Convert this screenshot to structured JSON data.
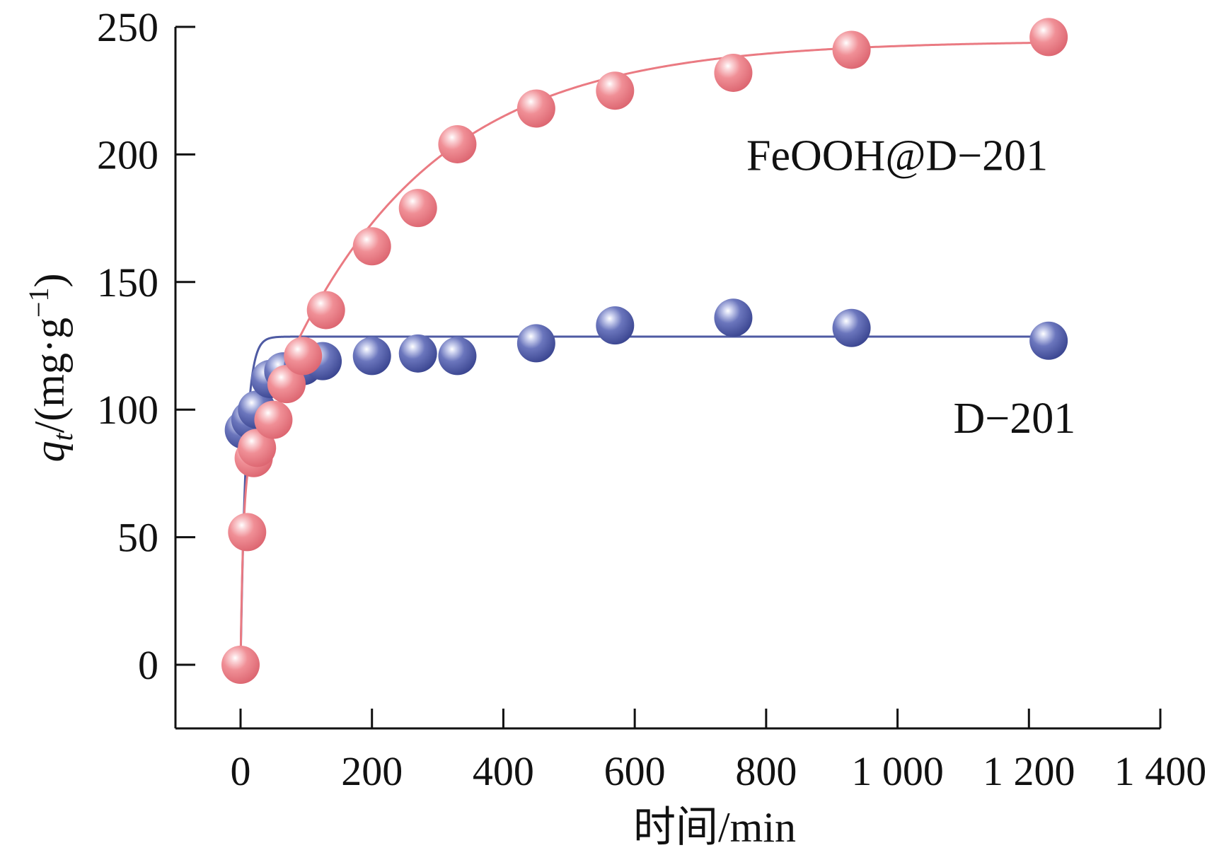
{
  "chart_data": {
    "type": "scatter",
    "xlabel": "时间/min",
    "ylabel": {
      "italic": "q",
      "subscript": "t",
      "unit_prefix": "/(mg·g",
      "superscript": "−1",
      "unit_suffix": ")"
    },
    "xlim": [
      -100,
      1400
    ],
    "ylim": [
      -25,
      250
    ],
    "x_ticks": [
      0,
      200,
      400,
      600,
      800,
      1000,
      1200,
      1400
    ],
    "x_tick_labels": [
      "0",
      "200",
      "400",
      "600",
      "800",
      "1 000",
      "1 200",
      "1 400"
    ],
    "y_ticks": [
      0,
      50,
      100,
      150,
      200,
      250
    ],
    "y_tick_labels": [
      "0",
      "50",
      "100",
      "150",
      "200",
      "250"
    ],
    "grid": false,
    "series": [
      {
        "name": "D−201",
        "color": "#4e5aa3",
        "fit": {
          "model": "exponential",
          "qe": 128.6,
          "k": 0.12,
          "x0": 0,
          "x1": 1220
        },
        "x": [
          5,
          15,
          25,
          45,
          65,
          95,
          125,
          200,
          270,
          330,
          450,
          570,
          750,
          930,
          1230
        ],
        "y": [
          92,
          96,
          100,
          112,
          115,
          117,
          119,
          121,
          122,
          121,
          126,
          133,
          136,
          132,
          127
        ]
      },
      {
        "name": "FeOOH@D−201",
        "color": "#ea7a82",
        "fit": {
          "model": "exponential",
          "qe": 244.6,
          "k": 0.0044,
          "x0": 0,
          "x1": 1220,
          "shape": "mixed",
          "q0": 72,
          "kf": 0.25
        },
        "x": [
          0,
          10,
          20,
          25,
          50,
          70,
          95,
          130,
          200,
          270,
          330,
          450,
          570,
          750,
          930,
          1230
        ],
        "y": [
          0,
          52,
          81,
          85,
          96,
          110,
          121,
          139,
          164,
          179,
          204,
          218,
          225,
          232,
          241,
          246
        ]
      }
    ],
    "annotations": [
      {
        "text": "FeOOH@D−201",
        "series": 1,
        "at_x": 770,
        "at_y": 200
      },
      {
        "text": "D−201",
        "series": 0,
        "at_x": 1085,
        "at_y": 97
      }
    ]
  }
}
